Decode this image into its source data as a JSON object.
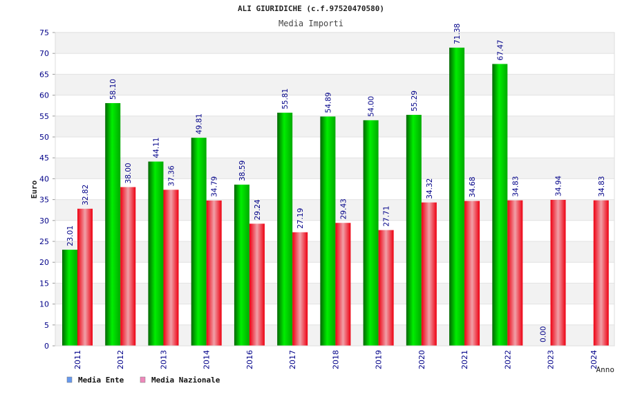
{
  "chart_data": {
    "type": "bar",
    "title": "ALI GIURIDICHE (c.f.97520470580)",
    "subtitle": "Media Importi",
    "xlabel": "Anno",
    "ylabel": "Euro",
    "ylim": [
      0,
      75
    ],
    "ytick_step": 5,
    "grid": true,
    "legend_position": "bottom-left",
    "categories": [
      "2011",
      "2012",
      "2013",
      "2014",
      "2016",
      "2017",
      "2018",
      "2019",
      "2020",
      "2021",
      "2022",
      "2023",
      "2024"
    ],
    "series": [
      {
        "name": "Media Ente",
        "legend_color": "#6699ee",
        "bar_color": "#00cc00",
        "values": [
          23.01,
          58.1,
          44.11,
          49.81,
          38.59,
          55.81,
          54.89,
          54.0,
          55.29,
          71.38,
          67.47,
          0.0,
          null
        ],
        "labels": [
          "23.01",
          "58.10",
          "44.11",
          "49.81",
          "38.59",
          "55.81",
          "54.89",
          "54.00",
          "55.29",
          "71.38",
          "67.47",
          "0.00",
          ""
        ]
      },
      {
        "name": "Media Nazionale",
        "legend_color": "#ee88bb",
        "bar_color": "#ee1122",
        "values": [
          32.82,
          38.0,
          37.36,
          34.79,
          29.24,
          27.19,
          29.43,
          27.71,
          34.32,
          34.68,
          34.83,
          34.94,
          34.83
        ],
        "labels": [
          "32.82",
          "38.00",
          "37.36",
          "34.79",
          "29.24",
          "27.19",
          "29.43",
          "27.71",
          "34.32",
          "34.68",
          "34.83",
          "34.94",
          "34.83"
        ]
      }
    ]
  }
}
